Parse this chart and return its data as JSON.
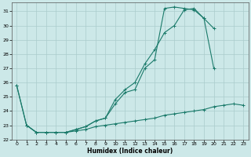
{
  "xlabel": "Humidex (Indice chaleur)",
  "background_color": "#cce8e8",
  "grid_color": "#aacccc",
  "line_color": "#1a7a6a",
  "xlim": [
    -0.5,
    23.5
  ],
  "ylim": [
    22.0,
    31.6
  ],
  "yticks": [
    22,
    23,
    24,
    25,
    26,
    27,
    28,
    29,
    30,
    31
  ],
  "xticks": [
    0,
    1,
    2,
    3,
    4,
    5,
    6,
    7,
    8,
    9,
    10,
    11,
    12,
    13,
    14,
    15,
    16,
    17,
    18,
    19,
    20,
    21,
    22,
    23
  ],
  "line1_x": [
    0,
    1,
    2,
    3,
    4,
    5,
    6,
    7,
    8,
    9,
    10,
    11,
    12,
    13,
    14,
    15,
    16,
    17,
    18,
    19,
    20
  ],
  "line1_y": [
    25.8,
    23.0,
    22.5,
    22.5,
    22.5,
    22.5,
    22.7,
    22.9,
    23.3,
    23.5,
    24.8,
    25.5,
    26.0,
    27.3,
    28.3,
    29.5,
    30.0,
    31.1,
    31.2,
    30.5,
    29.8
  ],
  "line2_x": [
    0,
    1,
    2,
    3,
    4,
    5,
    6,
    7,
    8,
    9,
    10,
    11,
    12,
    13,
    14,
    15,
    16,
    17,
    18,
    19,
    20,
    21,
    22,
    23
  ],
  "line2_y": [
    25.8,
    23.0,
    22.5,
    22.5,
    22.5,
    22.5,
    22.7,
    22.9,
    23.3,
    23.5,
    24.5,
    25.3,
    25.5,
    27.0,
    27.6,
    31.2,
    31.3,
    31.2,
    31.1,
    30.5,
    27.0,
    null,
    null,
    null
  ],
  "line3_x": [
    1,
    2,
    3,
    4,
    5,
    6,
    7,
    8,
    9,
    10,
    11,
    12,
    13,
    14,
    15,
    16,
    17,
    18,
    19,
    20,
    21,
    22,
    23
  ],
  "line3_y": [
    23.0,
    22.5,
    22.5,
    22.5,
    22.5,
    22.6,
    22.7,
    22.9,
    23.0,
    23.1,
    23.2,
    23.3,
    23.4,
    23.5,
    23.7,
    23.8,
    23.9,
    24.0,
    24.1,
    24.3,
    24.4,
    24.5,
    24.4
  ]
}
